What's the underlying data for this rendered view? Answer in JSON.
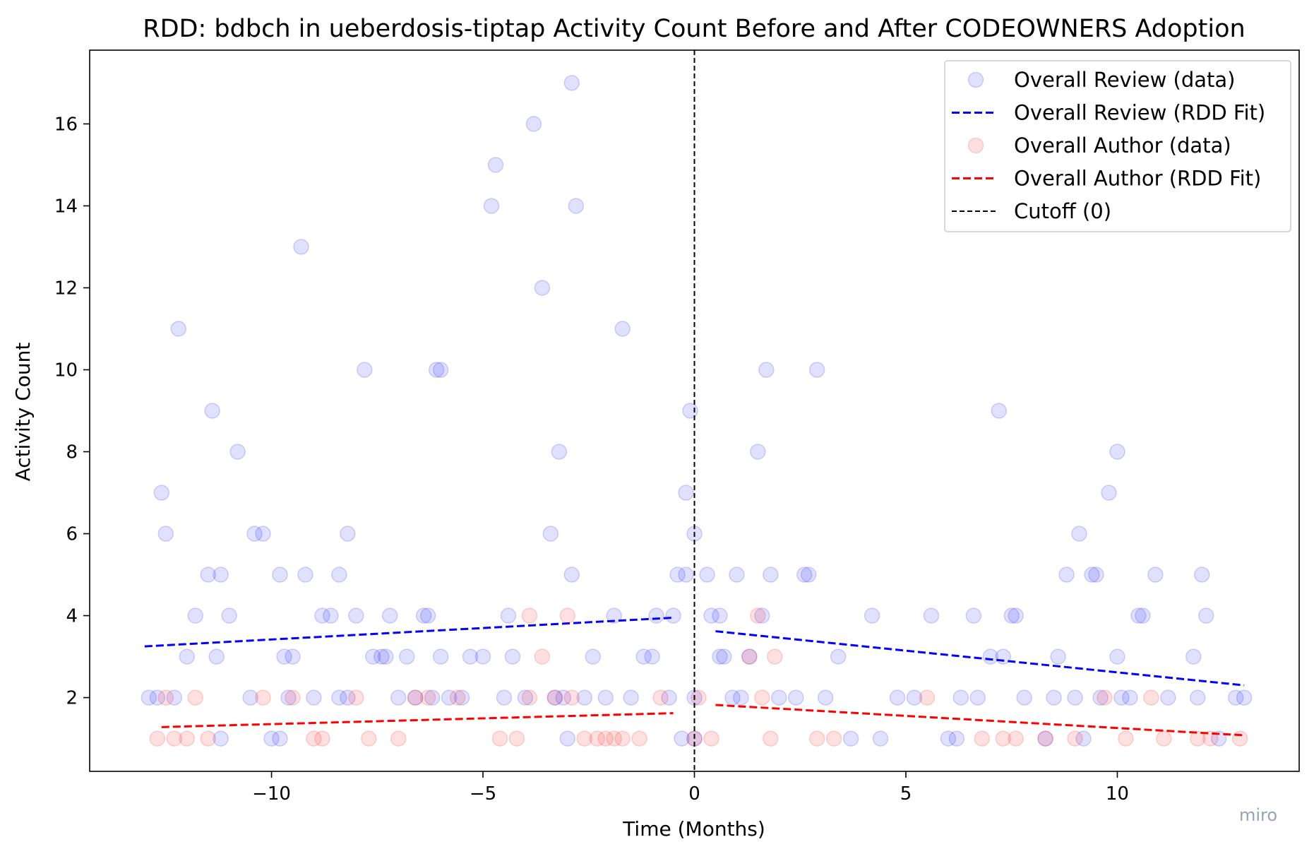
{
  "chart_data": {
    "type": "scatter",
    "title": "RDD: bdbch in ueberdosis-tiptap  Activity Count Before and After CODEOWNERS Adoption",
    "xlabel": "Time (Months)",
    "ylabel": "Activity Count",
    "xlim": [
      -14.3,
      14.3
    ],
    "ylim": [
      0.2,
      17.8
    ],
    "xticks": [
      -10,
      -5,
      0,
      5,
      10
    ],
    "xtick_labels": [
      "−10",
      "−5",
      "0",
      "5",
      "10"
    ],
    "yticks": [
      2,
      4,
      6,
      8,
      10,
      12,
      14,
      16
    ],
    "ytick_labels": [
      "2",
      "4",
      "6",
      "8",
      "10",
      "12",
      "14",
      "16"
    ],
    "grid": false,
    "legend_position": "top-right",
    "cutoff": {
      "x": 0,
      "label": "Cutoff (0)",
      "color": "#000000"
    },
    "series": [
      {
        "name": "Overall Review (data)",
        "kind": "scatter",
        "color": "#0000ff",
        "alpha": 0.12,
        "points": [
          [
            -12.6,
            7
          ],
          [
            -12.5,
            6
          ],
          [
            -12.9,
            2
          ],
          [
            -12.7,
            2
          ],
          [
            -12.3,
            2
          ],
          [
            -12.2,
            11
          ],
          [
            -12.0,
            3
          ],
          [
            -11.8,
            4
          ],
          [
            -11.5,
            5
          ],
          [
            -11.4,
            9
          ],
          [
            -11.2,
            5
          ],
          [
            -11.3,
            3
          ],
          [
            -11.0,
            4
          ],
          [
            -10.8,
            8
          ],
          [
            -11.2,
            1
          ],
          [
            -10.5,
            2
          ],
          [
            -10.4,
            6
          ],
          [
            -10.2,
            6
          ],
          [
            -10.0,
            1
          ],
          [
            -9.8,
            1
          ],
          [
            -9.6,
            2
          ],
          [
            -9.8,
            5
          ],
          [
            -9.7,
            3
          ],
          [
            -9.5,
            3
          ],
          [
            -9.3,
            13
          ],
          [
            -9.2,
            5
          ],
          [
            -9.0,
            2
          ],
          [
            -8.8,
            4
          ],
          [
            -8.6,
            4
          ],
          [
            -8.4,
            2
          ],
          [
            -8.4,
            5
          ],
          [
            -8.2,
            6
          ],
          [
            -8.0,
            4
          ],
          [
            -8.2,
            2
          ],
          [
            -7.8,
            10
          ],
          [
            -7.6,
            3
          ],
          [
            -7.4,
            3
          ],
          [
            -7.3,
            3
          ],
          [
            -7.2,
            4
          ],
          [
            -7.0,
            2
          ],
          [
            -6.8,
            3
          ],
          [
            -6.6,
            2
          ],
          [
            -6.4,
            4
          ],
          [
            -6.3,
            4
          ],
          [
            -6.2,
            2
          ],
          [
            -6.1,
            10
          ],
          [
            -6.0,
            10
          ],
          [
            -6.0,
            3
          ],
          [
            -5.8,
            2
          ],
          [
            -5.5,
            2
          ],
          [
            -5.3,
            3
          ],
          [
            -5.0,
            3
          ],
          [
            -4.8,
            14
          ],
          [
            -4.7,
            15
          ],
          [
            -4.5,
            2
          ],
          [
            -4.4,
            4
          ],
          [
            -4.3,
            3
          ],
          [
            -4.0,
            2
          ],
          [
            -3.8,
            16
          ],
          [
            -3.6,
            12
          ],
          [
            -3.4,
            6
          ],
          [
            -3.3,
            2
          ],
          [
            -3.1,
            2
          ],
          [
            -3.2,
            8
          ],
          [
            -3.0,
            1
          ],
          [
            -2.9,
            17
          ],
          [
            -2.8,
            14
          ],
          [
            -2.9,
            5
          ],
          [
            -2.6,
            2
          ],
          [
            -2.4,
            3
          ],
          [
            -2.1,
            2
          ],
          [
            -1.9,
            4
          ],
          [
            -1.7,
            11
          ],
          [
            -1.5,
            2
          ],
          [
            -1.2,
            3
          ],
          [
            -1.0,
            3
          ],
          [
            -0.9,
            4
          ],
          [
            -0.6,
            2
          ],
          [
            -0.5,
            4
          ],
          [
            -0.4,
            5
          ],
          [
            -0.2,
            5
          ],
          [
            -0.2,
            7
          ],
          [
            -0.1,
            9
          ],
          [
            0.0,
            6
          ],
          [
            0.0,
            2
          ],
          [
            0.0,
            1
          ],
          [
            -0.3,
            1
          ],
          [
            0.3,
            5
          ],
          [
            0.4,
            4
          ],
          [
            0.6,
            4
          ],
          [
            0.6,
            3
          ],
          [
            0.7,
            3
          ],
          [
            0.9,
            2
          ],
          [
            1.0,
            5
          ],
          [
            1.1,
            2
          ],
          [
            1.3,
            3
          ],
          [
            1.5,
            8
          ],
          [
            1.6,
            4
          ],
          [
            1.7,
            10
          ],
          [
            1.8,
            5
          ],
          [
            2.0,
            2
          ],
          [
            2.4,
            2
          ],
          [
            2.6,
            5
          ],
          [
            2.7,
            5
          ],
          [
            2.9,
            10
          ],
          [
            3.1,
            2
          ],
          [
            3.4,
            3
          ],
          [
            3.7,
            1
          ],
          [
            4.2,
            4
          ],
          [
            4.4,
            1
          ],
          [
            4.8,
            2
          ],
          [
            5.2,
            2
          ],
          [
            5.6,
            4
          ],
          [
            6.0,
            1
          ],
          [
            6.2,
            1
          ],
          [
            6.3,
            2
          ],
          [
            6.6,
            4
          ],
          [
            6.7,
            2
          ],
          [
            7.0,
            3
          ],
          [
            7.2,
            9
          ],
          [
            7.3,
            3
          ],
          [
            7.5,
            4
          ],
          [
            7.6,
            4
          ],
          [
            7.8,
            2
          ],
          [
            8.3,
            1
          ],
          [
            8.5,
            2
          ],
          [
            8.6,
            3
          ],
          [
            8.8,
            5
          ],
          [
            9.0,
            2
          ],
          [
            9.1,
            6
          ],
          [
            9.2,
            1
          ],
          [
            9.4,
            5
          ],
          [
            9.5,
            5
          ],
          [
            9.6,
            2
          ],
          [
            9.8,
            7
          ],
          [
            10.0,
            8
          ],
          [
            10.0,
            3
          ],
          [
            10.1,
            2
          ],
          [
            10.3,
            2
          ],
          [
            10.5,
            4
          ],
          [
            10.6,
            4
          ],
          [
            10.9,
            5
          ],
          [
            11.2,
            2
          ],
          [
            11.8,
            3
          ],
          [
            11.9,
            2
          ],
          [
            12.0,
            5
          ],
          [
            12.1,
            4
          ],
          [
            12.4,
            1
          ],
          [
            12.8,
            2
          ],
          [
            13.0,
            2
          ]
        ]
      },
      {
        "name": "Overall Review (RDD Fit)",
        "kind": "line",
        "color": "#0000ff",
        "dash": "dashed",
        "segments": [
          [
            [
              -13.0,
              3.25
            ],
            [
              -0.5,
              3.95
            ]
          ],
          [
            [
              0.5,
              3.62
            ],
            [
              13.0,
              2.3
            ]
          ]
        ]
      },
      {
        "name": "Overall Author (data)",
        "kind": "scatter",
        "color": "#ff0000",
        "alpha": 0.12,
        "points": [
          [
            -12.7,
            1
          ],
          [
            -12.3,
            1
          ],
          [
            -12.0,
            1
          ],
          [
            -11.8,
            2
          ],
          [
            -11.5,
            1
          ],
          [
            -12.5,
            2
          ],
          [
            -10.2,
            2
          ],
          [
            -9.5,
            2
          ],
          [
            -9.0,
            1
          ],
          [
            -8.8,
            1
          ],
          [
            -8.0,
            2
          ],
          [
            -7.7,
            1
          ],
          [
            -7.0,
            1
          ],
          [
            -6.6,
            2
          ],
          [
            -6.3,
            2
          ],
          [
            -5.6,
            2
          ],
          [
            -4.6,
            1
          ],
          [
            -4.2,
            1
          ],
          [
            -3.9,
            4
          ],
          [
            -3.9,
            2
          ],
          [
            -3.6,
            3
          ],
          [
            -3.3,
            2
          ],
          [
            -3.0,
            4
          ],
          [
            -2.9,
            2
          ],
          [
            -2.6,
            1
          ],
          [
            -2.3,
            1
          ],
          [
            -2.1,
            1
          ],
          [
            -1.9,
            1
          ],
          [
            -1.7,
            1
          ],
          [
            -1.3,
            1
          ],
          [
            -0.8,
            2
          ],
          [
            0.0,
            1
          ],
          [
            0.1,
            2
          ],
          [
            0.4,
            1
          ],
          [
            1.3,
            3
          ],
          [
            1.5,
            4
          ],
          [
            1.6,
            2
          ],
          [
            1.9,
            3
          ],
          [
            1.8,
            1
          ],
          [
            2.9,
            1
          ],
          [
            3.3,
            1
          ],
          [
            5.5,
            2
          ],
          [
            6.8,
            1
          ],
          [
            7.3,
            1
          ],
          [
            7.6,
            1
          ],
          [
            8.3,
            1
          ],
          [
            9.0,
            1
          ],
          [
            9.7,
            2
          ],
          [
            10.2,
            1
          ],
          [
            10.8,
            2
          ],
          [
            11.1,
            1
          ],
          [
            11.9,
            1
          ],
          [
            12.2,
            1
          ],
          [
            12.9,
            1
          ]
        ]
      },
      {
        "name": "Overall Author (RDD Fit)",
        "kind": "line",
        "color": "#ff0000",
        "dash": "dashed",
        "segments": [
          [
            [
              -12.6,
              1.28
            ],
            [
              -0.5,
              1.62
            ]
          ],
          [
            [
              0.5,
              1.82
            ],
            [
              13.0,
              1.08
            ]
          ]
        ]
      },
      {
        "name": "Cutoff (0)",
        "kind": "vline",
        "color": "#000000",
        "dash": "dashed",
        "x": 0
      }
    ]
  },
  "watermark": "miro"
}
